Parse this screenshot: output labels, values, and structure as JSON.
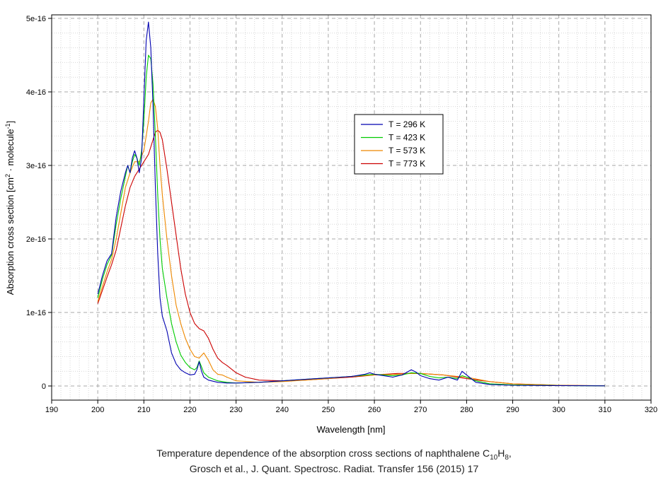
{
  "chart_data": {
    "type": "line",
    "xlabel": "Wavelength [nm]",
    "ylabel_parts": {
      "prefix": "Absorption cross section [cm",
      "sup1": "2",
      "middle": " · molecule",
      "sup2": "-1",
      "suffix": "]"
    },
    "xlim": [
      190,
      320
    ],
    "ylim": [
      0,
      5e-16
    ],
    "x_ticks": [
      190,
      200,
      210,
      220,
      230,
      240,
      250,
      260,
      270,
      280,
      290,
      300,
      310,
      320
    ],
    "y_ticks": [
      {
        "value": 0,
        "label": "0"
      },
      {
        "value": 1e-16,
        "label": "1e-16"
      },
      {
        "value": 2e-16,
        "label": "2e-16"
      },
      {
        "value": 3e-16,
        "label": "3e-16"
      },
      {
        "value": 4e-16,
        "label": "4e-16"
      },
      {
        "value": 5e-16,
        "label": "5e-16"
      }
    ],
    "grid": true,
    "legend_position": "center-right",
    "series": [
      {
        "name": "T = 296 K",
        "color": "#0000b0",
        "x": [
          200,
          201,
          202,
          203,
          204,
          205,
          206,
          206.5,
          207,
          207.5,
          208,
          208.5,
          209,
          209.5,
          210,
          210.5,
          211,
          211.5,
          212,
          212.5,
          213,
          213.5,
          214,
          215,
          216,
          217,
          218,
          219,
          220,
          221,
          221.5,
          222,
          222.5,
          223,
          224,
          226,
          228,
          230,
          235,
          240,
          245,
          250,
          255,
          258,
          259,
          260,
          262,
          264,
          266,
          268,
          269,
          270,
          272,
          274,
          276,
          277,
          278,
          279,
          280,
          282,
          285,
          290,
          300,
          310
        ],
        "y": [
          1.25e-16,
          1.5e-16,
          1.7e-16,
          1.8e-16,
          2.3e-16,
          2.65e-16,
          2.9e-16,
          3e-16,
          2.9e-16,
          3.1e-16,
          3.2e-16,
          3.1e-16,
          2.9e-16,
          3.1e-16,
          3.9e-16,
          4.7e-16,
          4.95e-16,
          4.6e-16,
          3.8e-16,
          2.7e-16,
          1.8e-16,
          1.2e-16,
          9.5e-17,
          7.5e-17,
          4.5e-17,
          3e-17,
          2.2e-17,
          1.8e-17,
          1.5e-17,
          1.6e-17,
          2.2e-17,
          3.3e-17,
          2e-17,
          1.2e-17,
          8e-18,
          5e-18,
          4e-18,
          4e-18,
          5e-18,
          7e-18,
          9e-18,
          1.1e-17,
          1.3e-17,
          1.6e-17,
          1.8e-17,
          1.6e-17,
          1.4e-17,
          1.2e-17,
          1.5e-17,
          2.2e-17,
          1.9e-17,
          1.4e-17,
          1e-17,
          8e-18,
          1.2e-17,
          1e-17,
          8e-18,
          2e-17,
          1.5e-17,
          5e-18,
          2e-18,
          1e-18,
          5e-19,
          2e-19
        ]
      },
      {
        "name": "T = 423 K",
        "color": "#00cc00",
        "x": [
          200,
          201,
          202,
          203,
          204,
          205,
          206,
          206.5,
          207,
          207.5,
          208,
          208.5,
          209,
          209.5,
          210,
          210.5,
          211,
          211.5,
          212,
          212.5,
          213,
          213.5,
          214,
          215,
          216,
          217,
          218,
          219,
          220,
          221,
          221.5,
          222,
          222.5,
          223,
          224,
          226,
          228,
          230,
          235,
          240,
          245,
          250,
          255,
          258,
          260,
          262,
          264,
          266,
          268,
          270,
          272,
          274,
          276,
          278,
          279,
          280,
          282,
          285,
          290,
          300,
          310
        ],
        "y": [
          1.2e-16,
          1.45e-16,
          1.65e-16,
          1.78e-16,
          2.2e-16,
          2.55e-16,
          2.85e-16,
          3e-16,
          2.9e-16,
          3.05e-16,
          3.15e-16,
          3.1e-16,
          3e-16,
          3.2e-16,
          3.6e-16,
          4.2e-16,
          4.5e-16,
          4.45e-16,
          4.1e-16,
          3.4e-16,
          2.6e-16,
          2e-16,
          1.6e-16,
          1.2e-16,
          8.5e-17,
          6e-17,
          4.2e-17,
          3.2e-17,
          2.5e-17,
          2.2e-17,
          2.5e-17,
          3.4e-17,
          2.6e-17,
          1.8e-17,
          1.2e-17,
          7e-18,
          5e-18,
          4e-18,
          5e-18,
          7e-18,
          9e-18,
          1.1e-17,
          1.3e-17,
          1.5e-17,
          1.6e-17,
          1.5e-17,
          1.4e-17,
          1.5e-17,
          1.8e-17,
          1.7e-17,
          1.3e-17,
          1.1e-17,
          1.2e-17,
          1e-17,
          1.4e-17,
          1.2e-17,
          7e-18,
          3e-18,
          1.5e-18,
          6e-19,
          2e-19
        ]
      },
      {
        "name": "T = 573 K",
        "color": "#ee8800",
        "x": [
          200,
          201,
          202,
          203,
          204,
          205,
          206,
          207,
          208,
          209,
          210,
          210.5,
          211,
          211.5,
          212,
          212.5,
          213,
          213.5,
          214,
          215,
          216,
          217,
          218,
          219,
          220,
          221,
          222,
          223,
          224,
          225,
          226,
          227,
          228,
          230,
          235,
          240,
          245,
          250,
          255,
          260,
          265,
          268,
          270,
          275,
          278,
          280,
          285,
          290,
          300,
          310
        ],
        "y": [
          1.15e-16,
          1.35e-16,
          1.55e-16,
          1.72e-16,
          2e-16,
          2.35e-16,
          2.7e-16,
          2.9e-16,
          3.05e-16,
          3.05e-16,
          3.2e-16,
          3.4e-16,
          3.6e-16,
          3.85e-16,
          3.9e-16,
          3.8e-16,
          3.5e-16,
          3e-16,
          2.6e-16,
          2e-16,
          1.5e-16,
          1.1e-16,
          8.5e-17,
          6.5e-17,
          5e-17,
          4e-17,
          3.8e-17,
          4.5e-17,
          3.5e-17,
          2.2e-17,
          1.6e-17,
          1.5e-17,
          1.2e-17,
          7e-18,
          5e-18,
          6e-18,
          8e-18,
          1e-17,
          1.3e-17,
          1.5e-17,
          1.6e-17,
          1.7e-17,
          1.7e-17,
          1.5e-17,
          1.3e-17,
          1.2e-17,
          6e-18,
          3e-18,
          8e-19,
          3e-19
        ]
      },
      {
        "name": "T = 773 K",
        "color": "#cc0000",
        "x": [
          200,
          201,
          202,
          203,
          204,
          205,
          206,
          207,
          208,
          209,
          210,
          211,
          212,
          212.5,
          213,
          213.5,
          214,
          215,
          216,
          217,
          218,
          219,
          220,
          221,
          222,
          223,
          224,
          225,
          226,
          227,
          228,
          230,
          232,
          235,
          240,
          245,
          250,
          255,
          260,
          265,
          270,
          275,
          280,
          285,
          290,
          300,
          310
        ],
        "y": [
          1.12e-16,
          1.3e-16,
          1.48e-16,
          1.65e-16,
          1.85e-16,
          2.15e-16,
          2.45e-16,
          2.7e-16,
          2.85e-16,
          2.95e-16,
          3.05e-16,
          3.15e-16,
          3.35e-16,
          3.45e-16,
          3.48e-16,
          3.45e-16,
          3.35e-16,
          2.95e-16,
          2.5e-16,
          2.05e-16,
          1.6e-16,
          1.25e-16,
          1e-16,
          8.5e-17,
          7.8e-17,
          7.5e-17,
          6.5e-17,
          5e-17,
          3.8e-17,
          3.2e-17,
          2.8e-17,
          1.8e-17,
          1.2e-17,
          8e-18,
          7e-18,
          8e-18,
          1e-17,
          1.2e-17,
          1.5e-17,
          1.7e-17,
          1.7e-17,
          1.5e-17,
          1e-17,
          6e-18,
          3e-18,
          1e-18,
          3e-19
        ]
      }
    ]
  },
  "caption": {
    "line1_prefix": "Temperature dependence of the absorption cross sections of naphthalene C",
    "line1_sub1": "10",
    "line1_mid": "H",
    "line1_sub2": "8",
    "line1_suffix": ",",
    "line2": "Grosch et al., J. Quant. Spectrosc. Radiat. Transfer 156 (2015) 17"
  }
}
